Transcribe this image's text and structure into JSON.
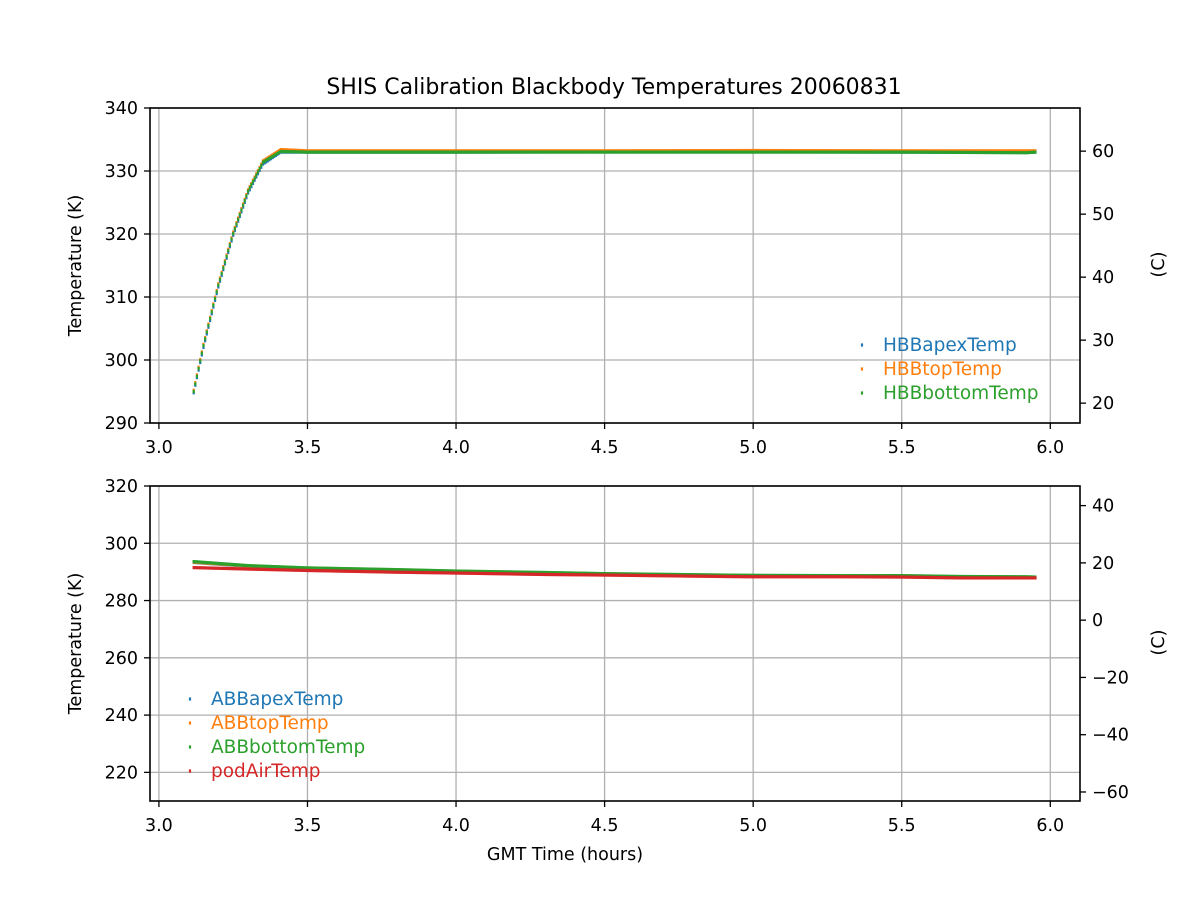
{
  "figure_title": "SHIS Calibration Blackbody Temperatures 20060831",
  "colors": {
    "blue": "#1f77b4",
    "orange": "#ff7f0e",
    "green": "#2ca02c",
    "red": "#d62728",
    "grid": "#b0b0b0"
  },
  "chart_data": [
    {
      "type": "scatter",
      "title": "SHIS Calibration Blackbody Temperatures 20060831",
      "xlabel": "",
      "ylabel": "Temperature (K)",
      "y2label": "(C)",
      "xlim": [
        2.97,
        6.1
      ],
      "ylim": [
        290,
        340
      ],
      "y2lim": [
        16.85,
        66.85
      ],
      "xticks": [
        3.0,
        3.5,
        4.0,
        4.5,
        5.0,
        5.5,
        6.0
      ],
      "xtick_labels": [
        "3.0",
        "3.5",
        "4.0",
        "4.5",
        "5.0",
        "5.5",
        "6.0"
      ],
      "yticks": [
        290,
        300,
        310,
        320,
        330,
        340
      ],
      "ytick_labels": [
        "290",
        "300",
        "310",
        "320",
        "330",
        "340"
      ],
      "y2ticks": [
        20,
        30,
        40,
        50,
        60
      ],
      "y2tick_labels": [
        "20",
        "30",
        "40",
        "50",
        "60"
      ],
      "grid": true,
      "legend_position": "bottom-right",
      "series": [
        {
          "name": "HBBapexTemp",
          "color": "#1f77b4",
          "x": [
            3.117,
            3.15,
            3.2,
            3.25,
            3.3,
            3.35,
            3.41,
            3.5,
            4.0,
            4.5,
            5.0,
            5.5,
            5.92,
            5.95
          ],
          "y": [
            294.8,
            302.0,
            311.6,
            319.8,
            326.5,
            331.1,
            333.0,
            333.0,
            333.0,
            333.05,
            333.05,
            333.0,
            333.0,
            333.0
          ]
        },
        {
          "name": "HBBtopTemp",
          "color": "#ff7f0e",
          "x": [
            3.117,
            3.15,
            3.2,
            3.25,
            3.3,
            3.35,
            3.41,
            3.5,
            4.0,
            4.5,
            5.0,
            5.5,
            5.92,
            5.95
          ],
          "y": [
            295.2,
            302.5,
            312.1,
            320.3,
            327.0,
            331.6,
            333.4,
            333.2,
            333.2,
            333.2,
            333.25,
            333.2,
            333.2,
            333.2
          ]
        },
        {
          "name": "HBBbottomTemp",
          "color": "#2ca02c",
          "x": [
            3.117,
            3.15,
            3.2,
            3.25,
            3.3,
            3.35,
            3.41,
            3.5,
            4.0,
            4.5,
            5.0,
            5.5,
            5.92,
            5.95
          ],
          "y": [
            295.0,
            302.3,
            311.9,
            320.1,
            326.8,
            331.4,
            333.1,
            333.0,
            333.0,
            333.0,
            333.0,
            333.0,
            332.9,
            333.0
          ]
        }
      ]
    },
    {
      "type": "scatter",
      "title": "",
      "xlabel": "GMT Time (hours)",
      "ylabel": "Temperature (K)",
      "y2label": "(C)",
      "xlim": [
        2.97,
        6.1
      ],
      "ylim": [
        210,
        320
      ],
      "y2lim": [
        -63.15,
        46.85
      ],
      "xticks": [
        3.0,
        3.5,
        4.0,
        4.5,
        5.0,
        5.5,
        6.0
      ],
      "xtick_labels": [
        "3.0",
        "3.5",
        "4.0",
        "4.5",
        "5.0",
        "5.5",
        "6.0"
      ],
      "yticks": [
        220,
        240,
        260,
        280,
        300,
        320
      ],
      "ytick_labels": [
        "220",
        "240",
        "260",
        "280",
        "300",
        "320"
      ],
      "y2ticks": [
        -60,
        -40,
        -20,
        0,
        20,
        40
      ],
      "y2tick_labels": [
        "−60",
        "−40",
        "−20",
        "0",
        "20",
        "40"
      ],
      "grid": true,
      "legend_position": "bottom-left",
      "series": [
        {
          "name": "ABBapexTemp",
          "color": "#1f77b4",
          "x": [
            3.117,
            3.3,
            3.5,
            3.8,
            4.0,
            4.3,
            4.5,
            4.9,
            5.0,
            5.3,
            5.5,
            5.7,
            5.92,
            5.95
          ],
          "y": [
            293.3,
            292.0,
            291.2,
            290.6,
            290.1,
            289.6,
            289.2,
            288.7,
            288.6,
            288.5,
            288.5,
            288.2,
            288.1,
            288.0
          ]
        },
        {
          "name": "ABBtopTemp",
          "color": "#ff7f0e",
          "x": [
            3.117,
            3.3,
            3.5,
            3.8,
            4.0,
            4.3,
            4.5,
            4.9,
            5.0,
            5.3,
            5.5,
            5.7,
            5.92,
            5.95
          ],
          "y": [
            293.4,
            292.1,
            291.3,
            290.7,
            290.2,
            289.7,
            289.3,
            288.8,
            288.7,
            288.6,
            288.6,
            288.3,
            288.2,
            288.1
          ]
        },
        {
          "name": "ABBbottomTemp",
          "color": "#2ca02c",
          "x": [
            3.117,
            3.3,
            3.5,
            3.8,
            4.0,
            4.3,
            4.5,
            4.9,
            5.0,
            5.3,
            5.5,
            5.7,
            5.92,
            5.95
          ],
          "y": [
            293.6,
            292.2,
            291.4,
            290.8,
            290.3,
            289.8,
            289.4,
            288.9,
            288.8,
            288.7,
            288.7,
            288.4,
            288.3,
            288.2
          ]
        },
        {
          "name": "podAirTemp",
          "color": "#d62728",
          "x": [
            3.117,
            3.3,
            3.5,
            3.8,
            4.0,
            4.3,
            4.5,
            4.9,
            5.0,
            5.3,
            5.5,
            5.7,
            5.92,
            5.95
          ],
          "y": [
            291.5,
            291.0,
            290.5,
            289.9,
            289.6,
            289.1,
            288.9,
            288.4,
            288.3,
            288.3,
            288.2,
            287.9,
            287.9,
            287.9
          ]
        }
      ]
    }
  ]
}
